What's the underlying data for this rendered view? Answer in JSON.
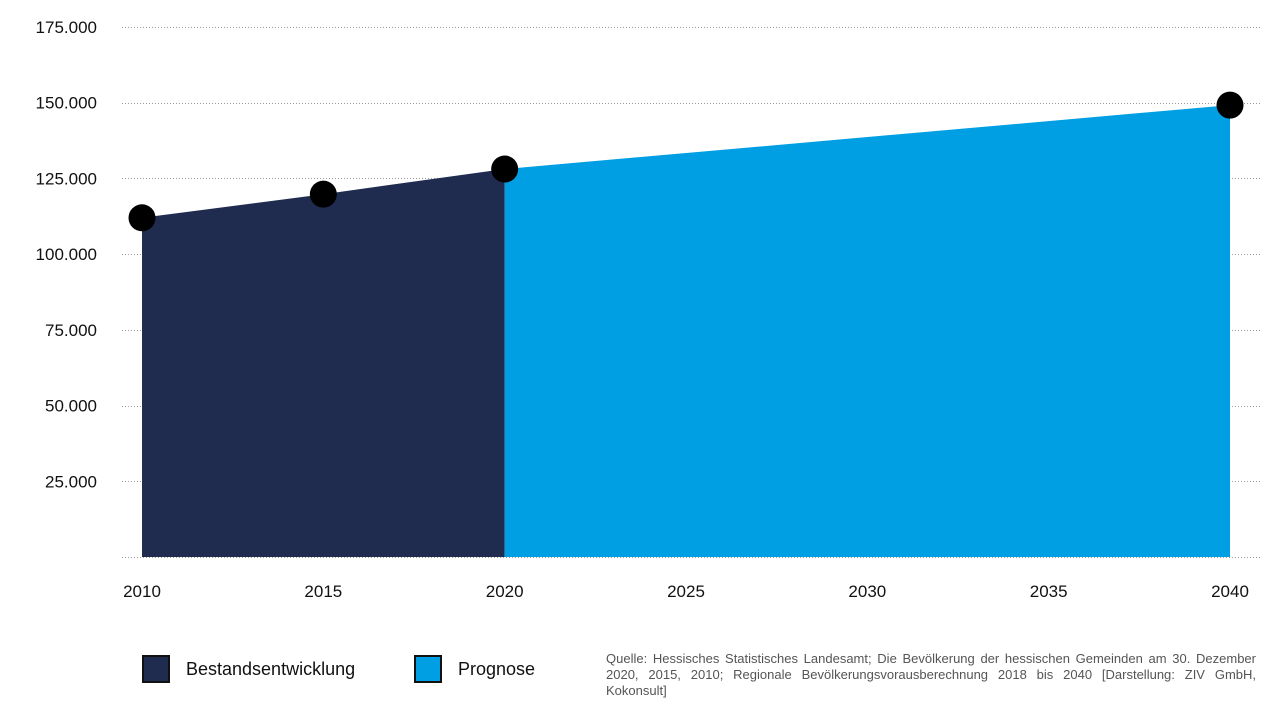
{
  "chart_data": {
    "type": "area",
    "x_ticks": [
      "2010",
      "2015",
      "2020",
      "2025",
      "2030",
      "2035",
      "2040"
    ],
    "y_ticks": [
      "25.000",
      "50.000",
      "75.000",
      "100.000",
      "125.000",
      "150.000",
      "175.000"
    ],
    "ylim": [
      0,
      175000
    ],
    "xlim": [
      2010,
      2040
    ],
    "grid": "horizontal dotted",
    "series": [
      {
        "name": "Bestandsentwicklung",
        "color": "#1f2b4f",
        "points": [
          {
            "x": 2010,
            "y": 112000
          },
          {
            "x": 2015,
            "y": 119800
          },
          {
            "x": 2020,
            "y": 128100
          }
        ]
      },
      {
        "name": "Prognose",
        "color": "#009fe3",
        "points": [
          {
            "x": 2020,
            "y": 128100
          },
          {
            "x": 2040,
            "y": 149200
          }
        ]
      }
    ],
    "markers": [
      {
        "x": 2010,
        "y": 112000
      },
      {
        "x": 2015,
        "y": 119800
      },
      {
        "x": 2020,
        "y": 128100
      },
      {
        "x": 2040,
        "y": 149200
      }
    ]
  },
  "legend": {
    "items": [
      {
        "label": "Bestandsentwicklung",
        "color": "#1f2b4f"
      },
      {
        "label": "Prognose",
        "color": "#009fe3"
      }
    ]
  },
  "source": {
    "text": "Quelle: Hessisches Statistisches Landesamt; Die Bevölkerung der hessischen Gemeinden am 30. Dezember 2020, 2015, 2010; Regionale Bevölkerungsvorausberechnung 2018 bis 2040 [Darstellung: ZIV GmbH, Kokonsult]"
  }
}
